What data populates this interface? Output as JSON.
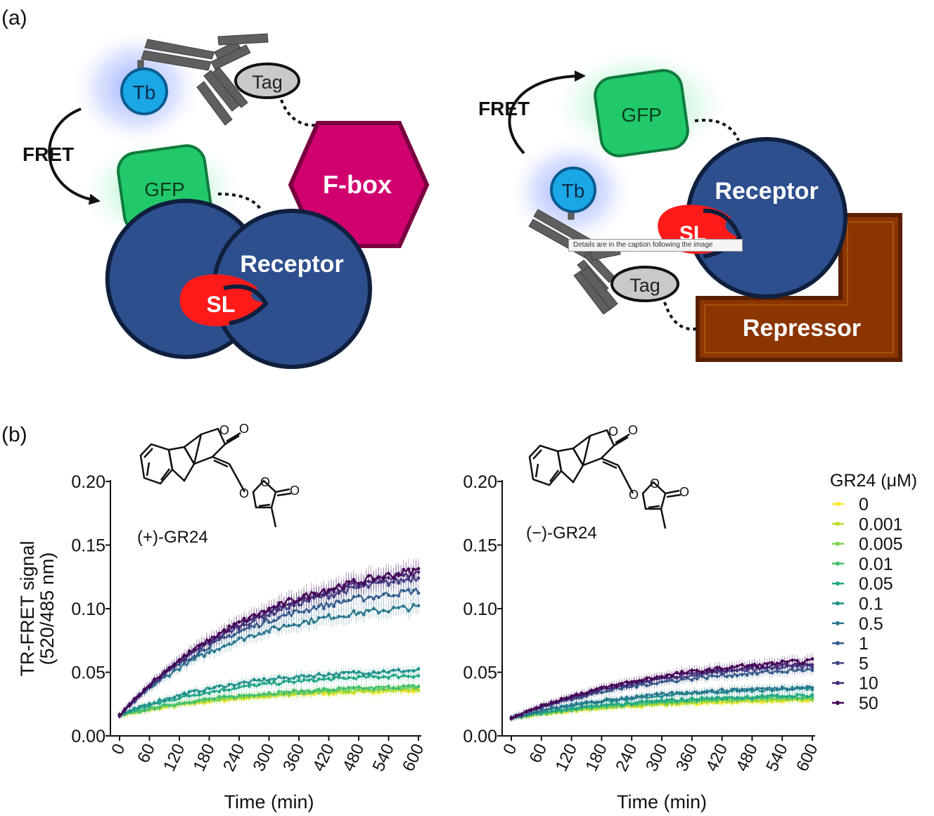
{
  "panel_labels": {
    "a": "(a)",
    "b": "(b)"
  },
  "diagram_left": {
    "tb": "Tb",
    "tag": "Tag",
    "fret": "FRET",
    "gfp": "GFP",
    "fbox": "F-box",
    "receptor": "Receptor",
    "sl": "SL"
  },
  "diagram_right": {
    "fret": "FRET",
    "gfp": "GFP",
    "tb": "Tb",
    "receptor": "Receptor",
    "sl": "SL",
    "tag": "Tag",
    "repressor": "Repressor"
  },
  "tooltip": "Details are in the caption following the image",
  "colors": {
    "gfp": "#22c96a",
    "tb": "#1aa7e6",
    "receptor": "#2d4f8e",
    "fbox": "#d1006f",
    "repressor": "#8b3500",
    "sl": "#ff1a1a",
    "antibody": "#606060"
  },
  "chart_data": [
    {
      "type": "line",
      "compound_label": "(+)-GR24",
      "xlabel": "Time (min)",
      "ylabel_line1": "TR-FRET signal",
      "ylabel_line2": "(520/485 nm)",
      "xlim": [
        0,
        600
      ],
      "ylim": [
        0,
        0.2
      ],
      "xticks": [
        "0",
        "60",
        "120",
        "180",
        "240",
        "300",
        "360",
        "420",
        "480",
        "540",
        "600"
      ],
      "yticks": [
        "0.00",
        "0.05",
        "0.10",
        "0.15",
        "0.20"
      ],
      "series": [
        {
          "name": "0",
          "color": "#fde725",
          "start": 0.016,
          "plateau": 0.038,
          "tau": 260
        },
        {
          "name": "0.001",
          "color": "#bddf26",
          "start": 0.016,
          "plateau": 0.039,
          "tau": 260
        },
        {
          "name": "0.005",
          "color": "#7ad151",
          "start": 0.016,
          "plateau": 0.04,
          "tau": 260
        },
        {
          "name": "0.01",
          "color": "#44bf70",
          "start": 0.016,
          "plateau": 0.041,
          "tau": 250
        },
        {
          "name": "0.05",
          "color": "#22a884",
          "start": 0.016,
          "plateau": 0.05,
          "tau": 230
        },
        {
          "name": "0.1",
          "color": "#21918c",
          "start": 0.016,
          "plateau": 0.054,
          "tau": 220
        },
        {
          "name": "0.5",
          "color": "#2a788e",
          "start": 0.016,
          "plateau": 0.108,
          "tau": 230
        },
        {
          "name": "1",
          "color": "#355f8d",
          "start": 0.016,
          "plateau": 0.125,
          "tau": 260
        },
        {
          "name": "5",
          "color": "#414487",
          "start": 0.016,
          "plateau": 0.14,
          "tau": 290
        },
        {
          "name": "10",
          "color": "#472d7b",
          "start": 0.016,
          "plateau": 0.145,
          "tau": 300
        },
        {
          "name": "50",
          "color": "#440154",
          "start": 0.016,
          "plateau": 0.148,
          "tau": 300
        }
      ]
    },
    {
      "type": "line",
      "compound_label": "(−)-GR24",
      "xlabel": "Time (min)",
      "xlim": [
        0,
        600
      ],
      "ylim": [
        0,
        0.2
      ],
      "xticks": [
        "0",
        "60",
        "120",
        "180",
        "240",
        "300",
        "360",
        "420",
        "480",
        "540",
        "600"
      ],
      "yticks": [
        "0.00",
        "0.05",
        "0.10",
        "0.15",
        "0.20"
      ],
      "legend_title": "GR24 (μM)",
      "legend_placement": "right",
      "series": [
        {
          "name": "0",
          "color": "#fde725",
          "start": 0.014,
          "plateau": 0.03,
          "tau": 280
        },
        {
          "name": "0.001",
          "color": "#bddf26",
          "start": 0.014,
          "plateau": 0.031,
          "tau": 280
        },
        {
          "name": "0.005",
          "color": "#7ad151",
          "start": 0.014,
          "plateau": 0.032,
          "tau": 280
        },
        {
          "name": "0.01",
          "color": "#44bf70",
          "start": 0.014,
          "plateau": 0.033,
          "tau": 270
        },
        {
          "name": "0.05",
          "color": "#22a884",
          "start": 0.014,
          "plateau": 0.034,
          "tau": 270
        },
        {
          "name": "0.1",
          "color": "#21918c",
          "start": 0.014,
          "plateau": 0.04,
          "tau": 260
        },
        {
          "name": "0.5",
          "color": "#2a788e",
          "start": 0.014,
          "plateau": 0.041,
          "tau": 260
        },
        {
          "name": "1",
          "color": "#355f8d",
          "start": 0.014,
          "plateau": 0.057,
          "tau": 280
        },
        {
          "name": "5",
          "color": "#414487",
          "start": 0.014,
          "plateau": 0.061,
          "tau": 290
        },
        {
          "name": "10",
          "color": "#472d7b",
          "start": 0.014,
          "plateau": 0.064,
          "tau": 300
        },
        {
          "name": "50",
          "color": "#440154",
          "start": 0.014,
          "plateau": 0.066,
          "tau": 300
        }
      ]
    }
  ]
}
